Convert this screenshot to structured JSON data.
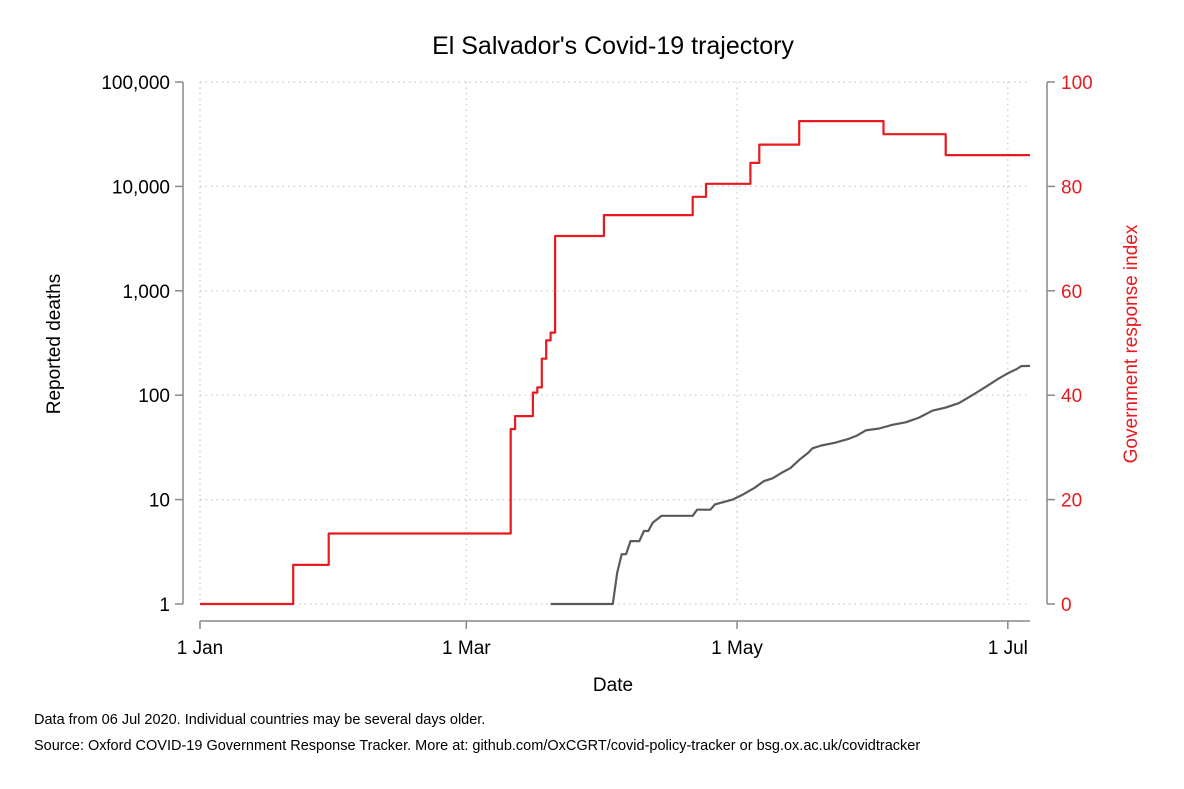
{
  "chart_data": {
    "type": "line",
    "title": "El Salvador's Covid-19 trajectory",
    "xlabel": "Date",
    "ylabel_left": "Reported deaths",
    "ylabel_right": "Government response index",
    "x_ticks": [
      "1 Jan",
      "1 Mar",
      "1 May",
      "1 Jul"
    ],
    "x_tick_dates": [
      "2020-01-01",
      "2020-03-01",
      "2020-05-01",
      "2020-07-01"
    ],
    "xlim": [
      "2020-01-01",
      "2020-07-06"
    ],
    "left_axis": {
      "scale": "log",
      "ylim": [
        1,
        100000
      ],
      "ticks": [
        1,
        10,
        100,
        1000,
        10000,
        100000
      ],
      "tick_labels": [
        "1",
        "10",
        "100",
        "1,000",
        "10,000",
        "100,000"
      ]
    },
    "right_axis": {
      "scale": "linear",
      "ylim": [
        0,
        100
      ],
      "ticks": [
        0,
        20,
        40,
        60,
        80,
        100
      ],
      "tick_labels": [
        "0",
        "20",
        "40",
        "60",
        "80",
        "100"
      ]
    },
    "grid": true,
    "series": [
      {
        "axis": "left",
        "color": "#5a5a5a",
        "points": [
          [
            "2020-03-20",
            1
          ],
          [
            "2020-04-03",
            1
          ],
          [
            "2020-04-04",
            2
          ],
          [
            "2020-04-05",
            3
          ],
          [
            "2020-04-06",
            3
          ],
          [
            "2020-04-07",
            4
          ],
          [
            "2020-04-09",
            4
          ],
          [
            "2020-04-10",
            5
          ],
          [
            "2020-04-11",
            5
          ],
          [
            "2020-04-12",
            6
          ],
          [
            "2020-04-14",
            7
          ],
          [
            "2020-04-21",
            7
          ],
          [
            "2020-04-22",
            8
          ],
          [
            "2020-04-25",
            8
          ],
          [
            "2020-04-26",
            9
          ],
          [
            "2020-04-30",
            10
          ],
          [
            "2020-05-02",
            11
          ],
          [
            "2020-05-05",
            13
          ],
          [
            "2020-05-07",
            15
          ],
          [
            "2020-05-09",
            16
          ],
          [
            "2020-05-11",
            18
          ],
          [
            "2020-05-13",
            20
          ],
          [
            "2020-05-15",
            24
          ],
          [
            "2020-05-17",
            28
          ],
          [
            "2020-05-18",
            31
          ],
          [
            "2020-05-20",
            33
          ],
          [
            "2020-05-23",
            35
          ],
          [
            "2020-05-26",
            38
          ],
          [
            "2020-05-28",
            41
          ],
          [
            "2020-05-30",
            46
          ],
          [
            "2020-06-02",
            48
          ],
          [
            "2020-06-05",
            52
          ],
          [
            "2020-06-08",
            55
          ],
          [
            "2020-06-11",
            61
          ],
          [
            "2020-06-14",
            71
          ],
          [
            "2020-06-17",
            76
          ],
          [
            "2020-06-20",
            84
          ],
          [
            "2020-06-23",
            100
          ],
          [
            "2020-06-26",
            120
          ],
          [
            "2020-06-29",
            145
          ],
          [
            "2020-07-01",
            162
          ],
          [
            "2020-07-03",
            178
          ],
          [
            "2020-07-04",
            190
          ],
          [
            "2020-07-06",
            191
          ]
        ]
      },
      {
        "axis": "right",
        "color": "#e8191f",
        "step": true,
        "points": [
          [
            "2020-01-01",
            0
          ],
          [
            "2020-01-22",
            7.5
          ],
          [
            "2020-01-30",
            13.5
          ],
          [
            "2020-03-11",
            33.5
          ],
          [
            "2020-03-12",
            36
          ],
          [
            "2020-03-16",
            40.5
          ],
          [
            "2020-03-17",
            41.5
          ],
          [
            "2020-03-18",
            47
          ],
          [
            "2020-03-19",
            50.5
          ],
          [
            "2020-03-20",
            52
          ],
          [
            "2020-03-21",
            70.5
          ],
          [
            "2020-04-01",
            74.5
          ],
          [
            "2020-04-21",
            78
          ],
          [
            "2020-04-24",
            80.5
          ],
          [
            "2020-05-04",
            84.5
          ],
          [
            "2020-05-06",
            88
          ],
          [
            "2020-05-15",
            92.5
          ],
          [
            "2020-06-03",
            90
          ],
          [
            "2020-06-17",
            86
          ],
          [
            "2020-07-06",
            86
          ]
        ]
      }
    ]
  },
  "notes": {
    "line1": "Data from 06 Jul 2020. Individual countries may be several days older.",
    "line2": "Source: Oxford COVID-19 Government Response Tracker. More at: github.com/OxCGRT/covid-policy-tracker or bsg.ox.ac.uk/covidtracker"
  }
}
